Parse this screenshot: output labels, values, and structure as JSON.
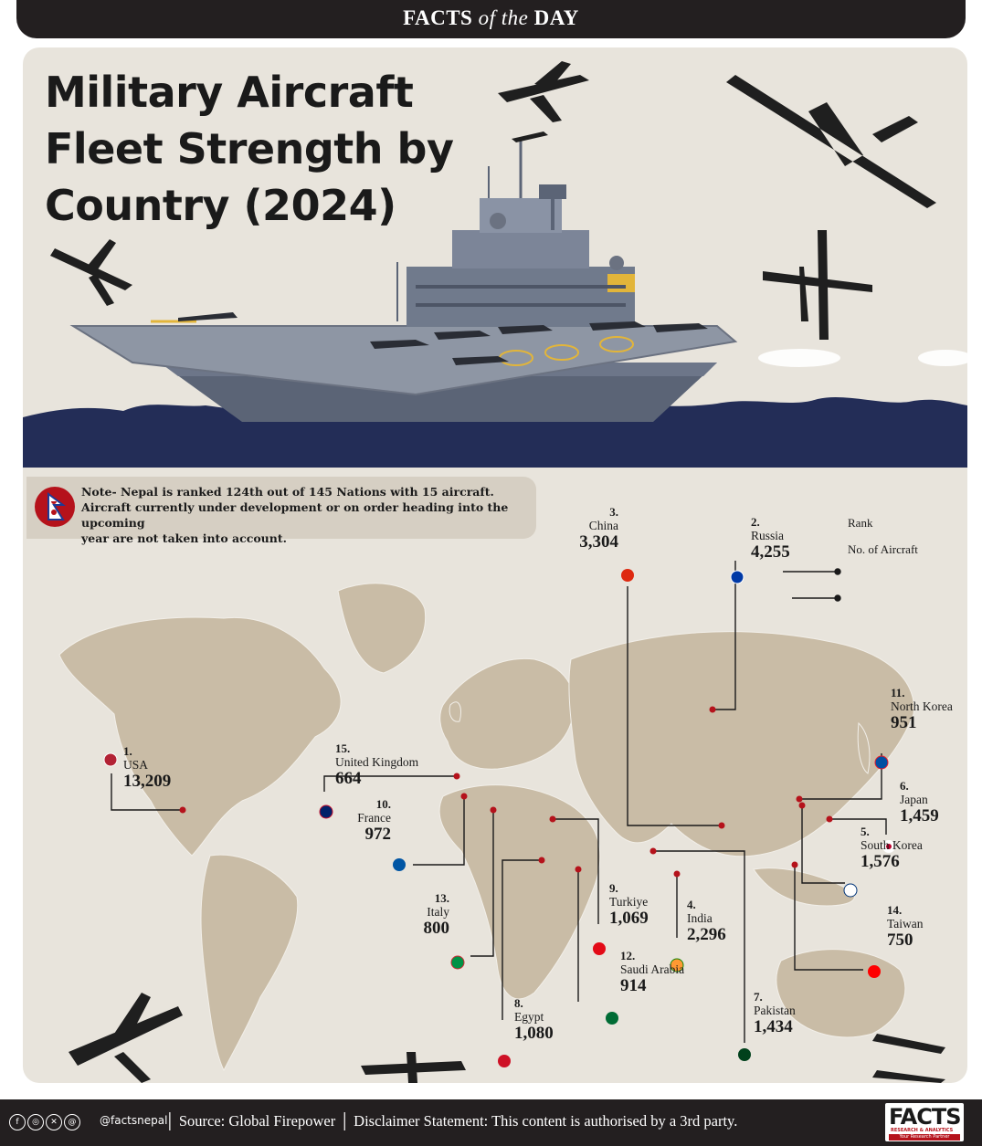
{
  "header": {
    "brand_prefix": "FACTS",
    "brand_mid": "of the",
    "brand_suffix": "DAY"
  },
  "title": {
    "line1": "Military Aircraft",
    "line2": "Fleet Strength by",
    "line3": "Country (2024)"
  },
  "note": {
    "line1": "Note- Nepal is ranked 124th out of 145 Nations with 15 aircraft.",
    "line2": "Aircraft currently under development or on order heading into the upcoming",
    "line3": "year are not taken into account."
  },
  "legend": {
    "rank": "Rank",
    "count": "No. of Aircraft"
  },
  "countries": [
    {
      "rank": "1.",
      "name": "USA",
      "count": "13,209"
    },
    {
      "rank": "2.",
      "name": "Russia",
      "count": "4,255"
    },
    {
      "rank": "3.",
      "name": "China",
      "count": "3,304"
    },
    {
      "rank": "4.",
      "name": "India",
      "count": "2,296"
    },
    {
      "rank": "5.",
      "name": "South Korea",
      "count": "1,576"
    },
    {
      "rank": "6.",
      "name": "Japan",
      "count": "1,459"
    },
    {
      "rank": "7.",
      "name": "Pakistan",
      "count": "1,434"
    },
    {
      "rank": "8.",
      "name": "Egypt",
      "count": "1,080"
    },
    {
      "rank": "9.",
      "name": "Turkiye",
      "count": "1,069"
    },
    {
      "rank": "10.",
      "name": "France",
      "count": "972"
    },
    {
      "rank": "11.",
      "name": "North Korea",
      "count": "951"
    },
    {
      "rank": "12.",
      "name": "Saudi Arabia",
      "count": "914"
    },
    {
      "rank": "13.",
      "name": "Italy",
      "count": "800"
    },
    {
      "rank": "14.",
      "name": "Taiwan",
      "count": "750"
    },
    {
      "rank": "15.",
      "name": "United Kingdom",
      "count": "664"
    }
  ],
  "footer": {
    "handle": "@factsnepal",
    "source": "Source: Global Firepower",
    "disclaimer": "Disclaimer Statement: This content is authorised by a 3rd party.",
    "logo": "FACTS",
    "logo_sub": "RESEARCH & ANALYTICS",
    "logo_tag": "Your Research Partner"
  },
  "colors": {
    "bg": "#e8e4dc",
    "land": "#c9bca6",
    "sea": "#232d57",
    "marker": "#b5121b",
    "dark": "#231f20"
  }
}
